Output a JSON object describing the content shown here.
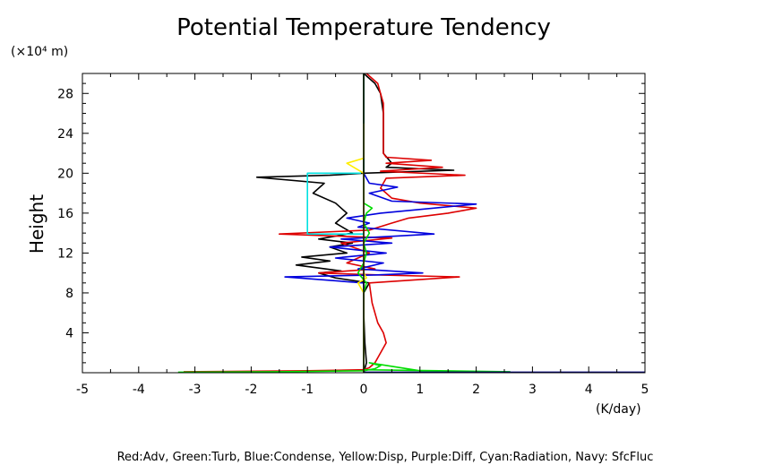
{
  "chart_data": {
    "type": "line",
    "title": "Potential Temperature Tendency",
    "ylabel": "Height",
    "yunit": "(×10⁴ m)",
    "xunit": "(K/day)",
    "caption": "Red:Adv, Green:Turb, Blue:Condense, Yellow:Disp, Purple:Diff, Cyan:Radiation, Navy: SfcFluc",
    "xlim": [
      -5,
      5
    ],
    "ylim": [
      0,
      30
    ],
    "xticks": [
      -5,
      -4,
      -3,
      -2,
      -1,
      0,
      1,
      2,
      3,
      4,
      5
    ],
    "xtick_labels": [
      "-5",
      "-4",
      "-3",
      "-2",
      "-1",
      "0",
      "1",
      "2",
      "3",
      "4",
      "5"
    ],
    "yticks": [
      4,
      8,
      12,
      16,
      20,
      24,
      28
    ],
    "ytick_labels": [
      "4",
      "8",
      "12",
      "16",
      "20",
      "24",
      "28"
    ],
    "grid": false,
    "series": [
      {
        "color": "#000000",
        "points": [
          [
            0,
            0
          ],
          [
            0.05,
            1
          ],
          [
            0.02,
            3
          ],
          [
            0,
            6
          ],
          [
            0,
            8
          ],
          [
            0.1,
            9
          ],
          [
            -0.5,
            9.5
          ],
          [
            -0.8,
            10
          ],
          [
            -0.4,
            10.2
          ],
          [
            -1.2,
            10.8
          ],
          [
            -0.6,
            11.2
          ],
          [
            -1.1,
            11.6
          ],
          [
            -0.3,
            12
          ],
          [
            -0.6,
            12.6
          ],
          [
            -0.2,
            13
          ],
          [
            -0.8,
            13.4
          ],
          [
            -0.2,
            14
          ],
          [
            -0.5,
            15
          ],
          [
            -0.3,
            16
          ],
          [
            -0.5,
            17
          ],
          [
            -0.9,
            18
          ],
          [
            -0.7,
            19
          ],
          [
            -1.9,
            19.6
          ],
          [
            -0.6,
            19.8
          ],
          [
            0,
            20
          ],
          [
            1.6,
            20.3
          ],
          [
            0.4,
            20.6
          ],
          [
            0.5,
            21
          ],
          [
            0.35,
            22
          ],
          [
            0.35,
            26
          ],
          [
            0.3,
            28
          ],
          [
            0.2,
            29
          ],
          [
            0,
            30
          ]
        ]
      },
      {
        "color": "#dd0000",
        "points": [
          [
            -3.2,
            0.1
          ],
          [
            -1,
            0.2
          ],
          [
            0,
            0.3
          ],
          [
            0.1,
            0.5
          ],
          [
            0.2,
            1
          ],
          [
            0.4,
            3
          ],
          [
            0.35,
            4
          ],
          [
            0.25,
            5
          ],
          [
            0.15,
            7
          ],
          [
            0.1,
            9
          ],
          [
            1.7,
            9.6
          ],
          [
            0.3,
            9.8
          ],
          [
            -0.8,
            10
          ],
          [
            0.2,
            10.4
          ],
          [
            -0.3,
            11
          ],
          [
            0.1,
            12
          ],
          [
            -0.4,
            13
          ],
          [
            0.5,
            13.5
          ],
          [
            -1.5,
            13.9
          ],
          [
            0.1,
            14.3
          ],
          [
            0.5,
            15
          ],
          [
            0.8,
            15.5
          ],
          [
            1.5,
            16
          ],
          [
            2,
            16.5
          ],
          [
            1,
            17
          ],
          [
            0.5,
            17.5
          ],
          [
            0.3,
            18.5
          ],
          [
            0.4,
            19.5
          ],
          [
            1.8,
            19.8
          ],
          [
            0.3,
            20.2
          ],
          [
            1.4,
            20.6
          ],
          [
            0.4,
            21
          ],
          [
            1.2,
            21.3
          ],
          [
            0.4,
            21.6
          ],
          [
            0.35,
            22
          ],
          [
            0.35,
            24
          ],
          [
            0.35,
            27
          ],
          [
            0.3,
            28
          ],
          [
            0.25,
            29
          ],
          [
            0.05,
            30
          ]
        ]
      },
      {
        "color": "#0000dd",
        "points": [
          [
            0,
            0
          ],
          [
            0,
            8
          ],
          [
            0,
            9
          ],
          [
            -1.4,
            9.6
          ],
          [
            0.2,
            9.8
          ],
          [
            1.05,
            10
          ],
          [
            -0.1,
            10.4
          ],
          [
            0.35,
            11
          ],
          [
            -0.5,
            11.5
          ],
          [
            0.4,
            12
          ],
          [
            -0.6,
            12.6
          ],
          [
            0.5,
            13
          ],
          [
            -0.4,
            13.4
          ],
          [
            1.25,
            13.9
          ],
          [
            -0.1,
            14.6
          ],
          [
            0.1,
            15
          ],
          [
            -0.3,
            15.5
          ],
          [
            0.3,
            16
          ],
          [
            2,
            16.9
          ],
          [
            0.5,
            17.2
          ],
          [
            0.1,
            18
          ],
          [
            0.6,
            18.6
          ],
          [
            0.1,
            19
          ],
          [
            0,
            20
          ],
          [
            0,
            30
          ]
        ]
      },
      {
        "color": "#00dd00",
        "points": [
          [
            -3.3,
            0.05
          ],
          [
            -1.5,
            0.1
          ],
          [
            0,
            0.2
          ],
          [
            0.2,
            0.4
          ],
          [
            0.3,
            0.7
          ],
          [
            0.1,
            1
          ],
          [
            1,
            0.2
          ],
          [
            2.6,
            0.1
          ],
          [
            0,
            0.3
          ],
          [
            0,
            8
          ],
          [
            0.05,
            9
          ],
          [
            -0.1,
            10
          ],
          [
            0,
            11
          ],
          [
            0.05,
            12
          ],
          [
            0,
            13
          ],
          [
            0.1,
            14
          ],
          [
            0,
            15
          ],
          [
            0.05,
            16
          ],
          [
            0.15,
            16.5
          ],
          [
            0,
            17
          ],
          [
            0,
            18
          ],
          [
            0,
            30
          ]
        ]
      },
      {
        "color": "#ffee00",
        "points": [
          [
            0,
            0
          ],
          [
            0,
            8
          ],
          [
            -0.1,
            9
          ],
          [
            0.05,
            9.5
          ],
          [
            0,
            10
          ],
          [
            0,
            20
          ],
          [
            -0.3,
            21
          ],
          [
            0,
            21.5
          ],
          [
            0,
            25
          ]
        ]
      },
      {
        "color": "#00e0e0",
        "points": [
          [
            0,
            13.9
          ],
          [
            -1,
            13.9
          ],
          [
            -1,
            20
          ],
          [
            -0.05,
            20
          ]
        ]
      },
      {
        "color": "#000080",
        "points": [
          [
            0,
            0.05
          ],
          [
            5,
            0.05
          ]
        ]
      }
    ]
  }
}
